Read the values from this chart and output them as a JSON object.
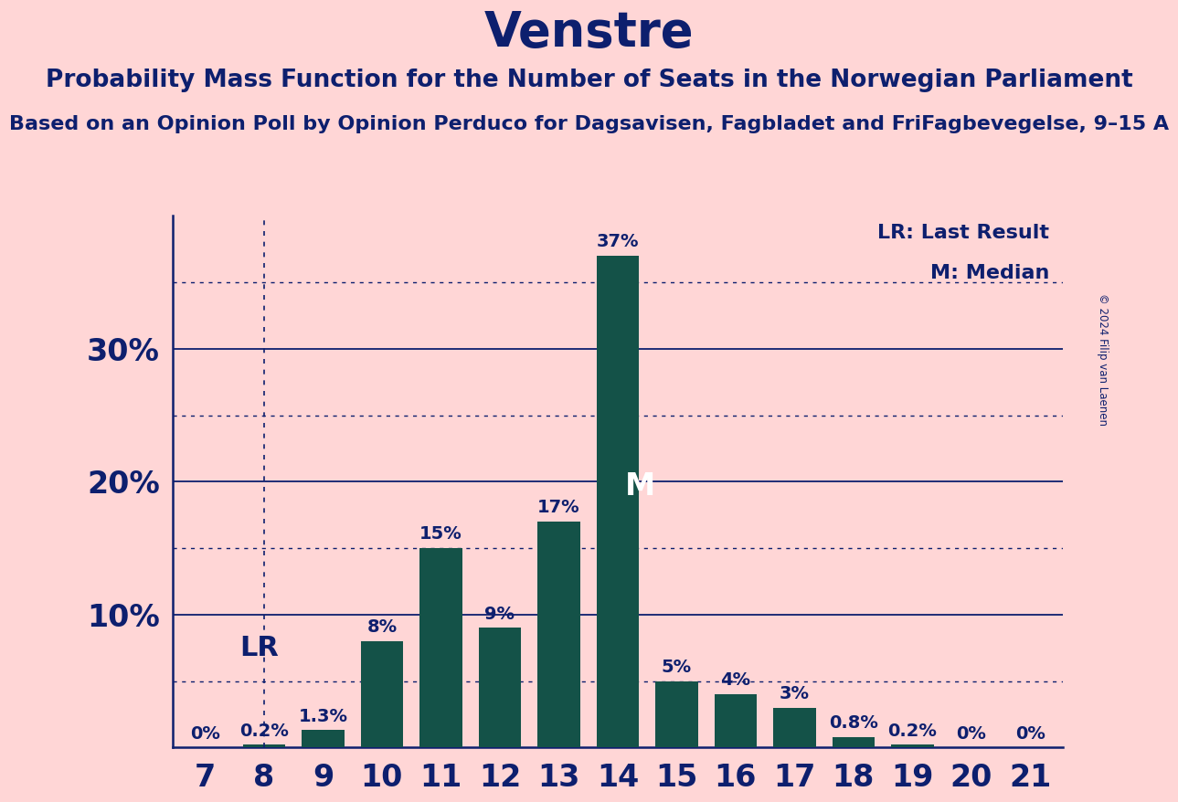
{
  "title": "Venstre",
  "subtitle": "Probability Mass Function for the Number of Seats in the Norwegian Parliament",
  "sub_subtitle": "Based on an Opinion Poll by Opinion Perduco for Dagsavisen, Fagbladet and FriFagbevegelse, 9–15 A",
  "copyright": "© 2024 Filip van Laenen",
  "seats": [
    7,
    8,
    9,
    10,
    11,
    12,
    13,
    14,
    15,
    16,
    17,
    18,
    19,
    20,
    21
  ],
  "probabilities": [
    0.0,
    0.2,
    1.3,
    8.0,
    15.0,
    9.0,
    17.0,
    37.0,
    5.0,
    4.0,
    3.0,
    0.8,
    0.2,
    0.0,
    0.0
  ],
  "bar_color": "#145248",
  "background_color": "#FFD6D6",
  "text_color": "#0d1f6e",
  "bar_labels": [
    "0%",
    "0.2%",
    "1.3%",
    "8%",
    "15%",
    "9%",
    "17%",
    "37%",
    "5%",
    "4%",
    "3%",
    "0.8%",
    "0.2%",
    "0%",
    "0%"
  ],
  "ylim": [
    0,
    40
  ],
  "yticks_solid": [
    10,
    20,
    30
  ],
  "yticks_dotted": [
    5,
    15,
    25,
    35
  ],
  "ylabel_ticks": [
    10,
    20,
    30
  ],
  "lr_seat": 8,
  "median_seat": 14,
  "legend_lr": "LR: Last Result",
  "legend_m": "M: Median",
  "title_fontsize": 38,
  "subtitle_fontsize": 19,
  "sub_subtitle_fontsize": 16,
  "bar_label_fontsize": 14,
  "axis_tick_fontsize": 24,
  "ytick_fontsize": 24
}
